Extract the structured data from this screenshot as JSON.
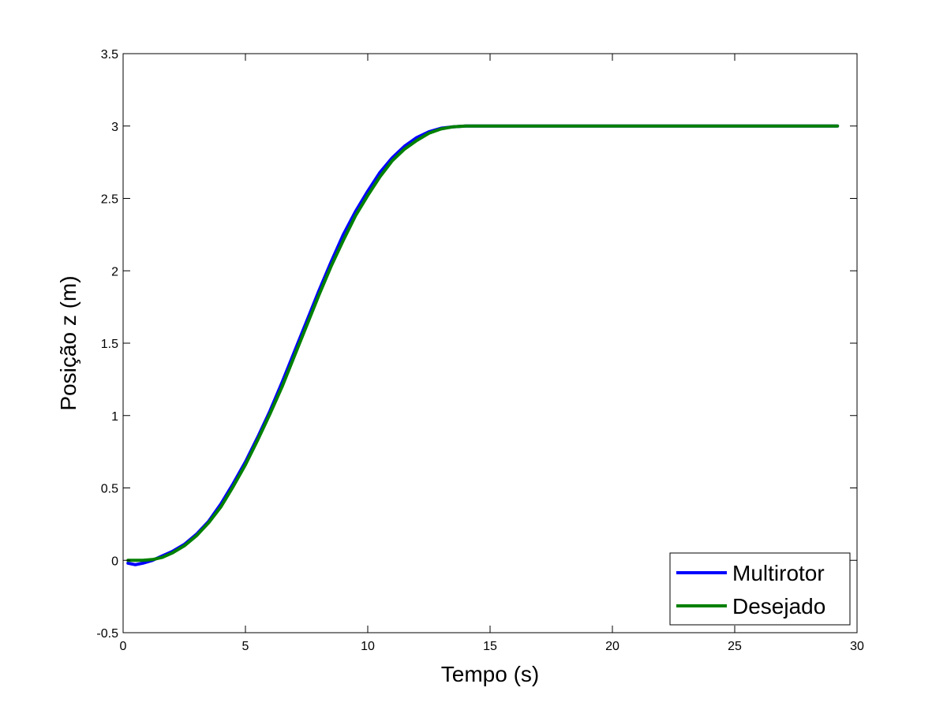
{
  "chart_data": {
    "type": "line",
    "title": "",
    "xlabel": "Tempo (s)",
    "ylabel": "Posição z (m)",
    "xlim": [
      0,
      30
    ],
    "ylim": [
      -0.5,
      3.5
    ],
    "xticks": [
      0,
      5,
      10,
      15,
      20,
      25,
      30
    ],
    "xtick_labels": [
      "0",
      "5",
      "10",
      "15",
      "20",
      "25",
      "30"
    ],
    "yticks": [
      -0.5,
      0,
      0.5,
      1,
      1.5,
      2,
      2.5,
      3,
      3.5
    ],
    "ytick_labels": [
      "-0.5",
      "0",
      "0.5",
      "1",
      "1.5",
      "2",
      "2.5",
      "3",
      "3.5"
    ],
    "grid": false,
    "legend_position": "bottom-right",
    "series": [
      {
        "name": "Multirotor",
        "color": "#0000ff",
        "x": [
          0.2,
          0.5,
          0.8,
          1.2,
          1.6,
          2.0,
          2.5,
          3.0,
          3.5,
          4.0,
          4.5,
          5.0,
          5.5,
          6.0,
          6.5,
          7.0,
          7.5,
          8.0,
          8.5,
          9.0,
          9.5,
          10.0,
          10.5,
          11.0,
          11.5,
          12.0,
          12.5,
          13.0,
          13.5,
          14.0,
          14.5,
          15.0,
          20.0,
          25.0,
          29.2
        ],
        "y": [
          -0.02,
          -0.03,
          -0.02,
          0.0,
          0.03,
          0.06,
          0.11,
          0.18,
          0.27,
          0.39,
          0.53,
          0.68,
          0.85,
          1.03,
          1.23,
          1.44,
          1.65,
          1.86,
          2.06,
          2.25,
          2.41,
          2.55,
          2.68,
          2.78,
          2.86,
          2.92,
          2.96,
          2.985,
          2.995,
          3.0,
          3.0,
          3.0,
          3.0,
          3.0,
          3.0
        ]
      },
      {
        "name": "Desejado",
        "color": "#008000",
        "x": [
          0.2,
          0.5,
          0.8,
          1.2,
          1.6,
          2.0,
          2.5,
          3.0,
          3.5,
          4.0,
          4.5,
          5.0,
          5.5,
          6.0,
          6.5,
          7.0,
          7.5,
          8.0,
          8.5,
          9.0,
          9.5,
          10.0,
          10.5,
          11.0,
          11.5,
          12.0,
          12.5,
          13.0,
          13.5,
          14.0,
          14.5,
          15.0,
          20.0,
          25.0,
          29.2
        ],
        "y": [
          0.0,
          0.0,
          0.0,
          0.005,
          0.02,
          0.05,
          0.1,
          0.17,
          0.26,
          0.37,
          0.51,
          0.66,
          0.83,
          1.01,
          1.2,
          1.41,
          1.62,
          1.83,
          2.03,
          2.21,
          2.38,
          2.52,
          2.65,
          2.76,
          2.84,
          2.9,
          2.95,
          2.98,
          2.995,
          3.0,
          3.0,
          3.0,
          3.0,
          3.0,
          3.0
        ]
      }
    ]
  }
}
